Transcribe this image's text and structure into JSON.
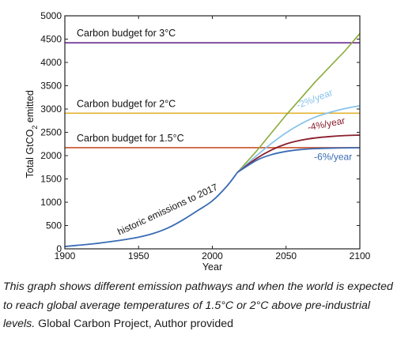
{
  "chart_data": {
    "type": "line",
    "xlabel": "Year",
    "ylabel_main": "Total GtCO",
    "ylabel_sub": "2",
    "ylabel_tail": " emitted",
    "xlim": [
      1900,
      2100
    ],
    "ylim": [
      0,
      5000
    ],
    "xticks": [
      1900,
      1950,
      2000,
      2050,
      2100
    ],
    "yticks": [
      0,
      500,
      1000,
      1500,
      2000,
      2500,
      3000,
      3500,
      4000,
      4500,
      5000
    ],
    "grid": false,
    "budgets": [
      {
        "label": "Carbon budget for 3°C",
        "value": 4420,
        "color": "#6b2a8f"
      },
      {
        "label": "Carbon budget for 2°C",
        "value": 2910,
        "color": "#e2b233"
      },
      {
        "label": "Carbon budget for 1.5°C",
        "value": 2170,
        "color": "#c9512a"
      }
    ],
    "historic": {
      "label": "historic emissions to 2017",
      "color": "#3a6bb5",
      "x": [
        1900,
        1910,
        1920,
        1930,
        1940,
        1950,
        1960,
        1970,
        1980,
        1990,
        2000,
        2010,
        2017
      ],
      "y": [
        50,
        80,
        110,
        150,
        195,
        250,
        330,
        450,
        620,
        820,
        1030,
        1350,
        1640
      ]
    },
    "pathways": [
      {
        "label": "",
        "color": "#8aab3a",
        "x": [
          2017,
          2030,
          2050,
          2070,
          2090,
          2100
        ],
        "y": [
          1640,
          2100,
          2870,
          3590,
          4250,
          4620
        ]
      },
      {
        "label": "-2%/year",
        "color": "#88c4ec",
        "x": [
          2017,
          2030,
          2040,
          2050,
          2060,
          2070,
          2080,
          2090,
          2100
        ],
        "y": [
          1640,
          2000,
          2260,
          2490,
          2680,
          2830,
          2930,
          3010,
          3070
        ]
      },
      {
        "label": "-4%/year",
        "color": "#8a1e2c",
        "x": [
          2017,
          2030,
          2040,
          2050,
          2060,
          2070,
          2080,
          2090,
          2100
        ],
        "y": [
          1640,
          1940,
          2120,
          2250,
          2330,
          2380,
          2410,
          2430,
          2440
        ]
      },
      {
        "label": "-6%/year",
        "color": "#3a6bb5",
        "x": [
          2017,
          2030,
          2040,
          2050,
          2060,
          2070,
          2080,
          2090,
          2100
        ],
        "y": [
          1640,
          1900,
          2020,
          2090,
          2130,
          2150,
          2160,
          2165,
          2170
        ]
      }
    ]
  },
  "caption": {
    "italic": "This graph shows different emission pathways and when the world is expected to reach global average temperatures of 1.5°C or 2°C above pre-industrial levels.",
    "credit": " Global Carbon Project, Author provided"
  }
}
